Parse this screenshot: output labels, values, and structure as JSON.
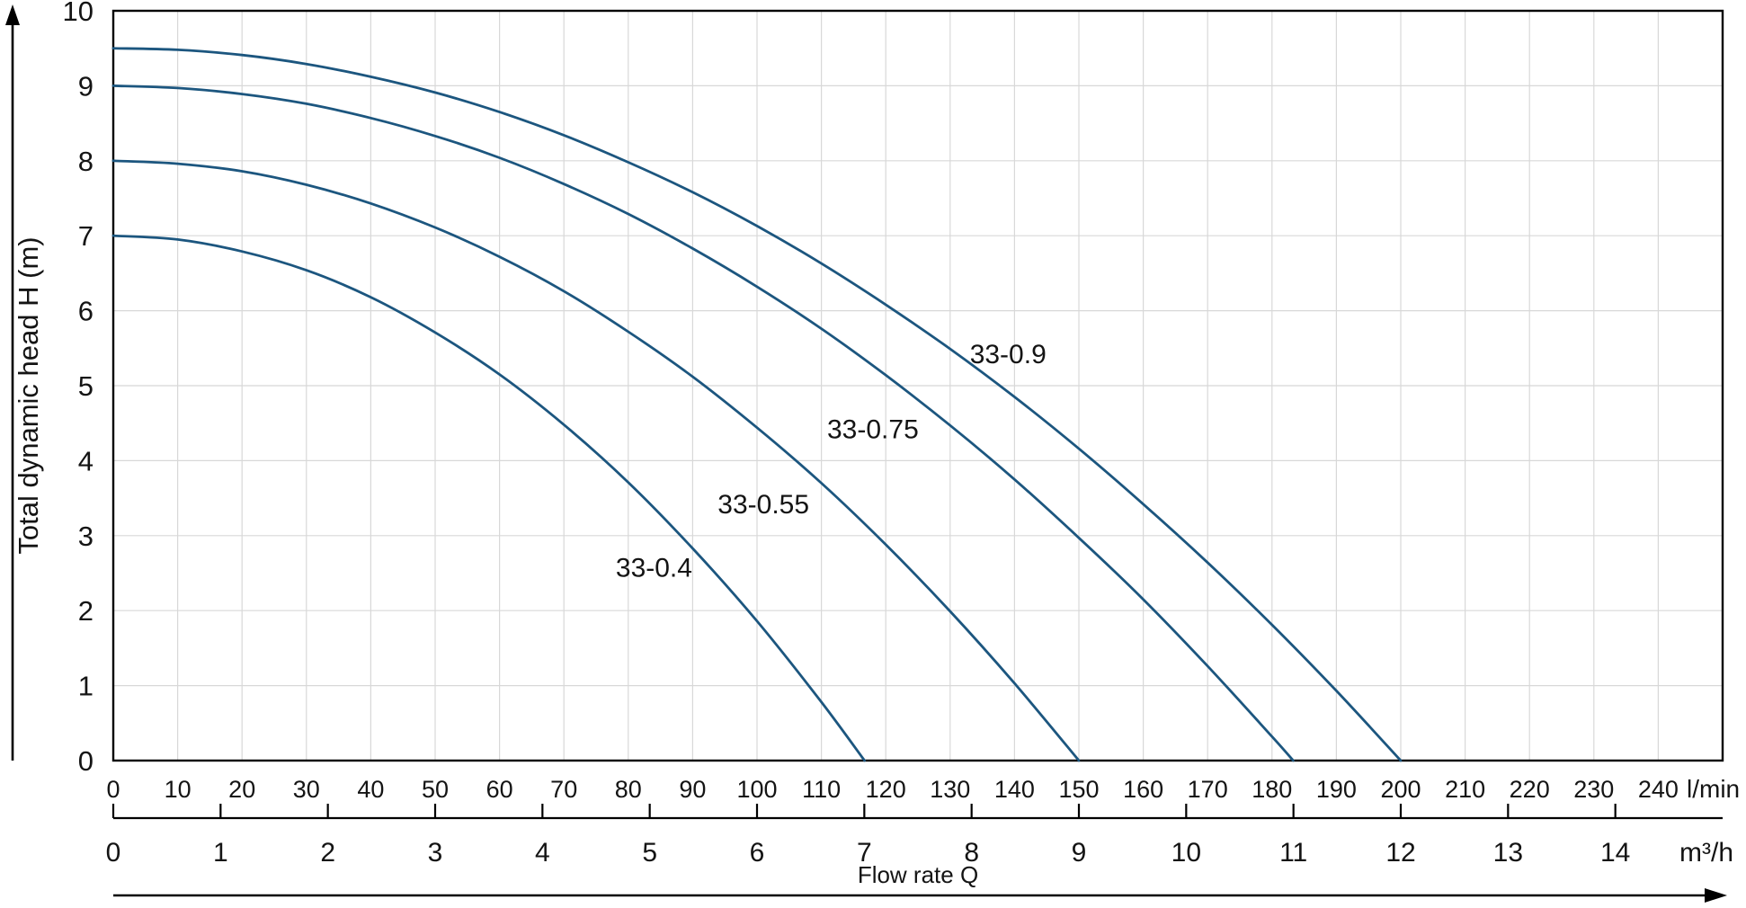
{
  "chart_data": {
    "type": "line",
    "xlabel": "Flow rate Q",
    "ylabel": "Total dynamic head H (m)",
    "grid": true,
    "legend_position": "inline-labels",
    "colors": {
      "curve": "#1c567f",
      "grid": "#d8d8d8",
      "axis": "#000000",
      "text": "#141414",
      "background": "#ffffff"
    },
    "y_axis": {
      "min": 0,
      "max": 10,
      "tick_step": 1,
      "tick_labels": [
        "0",
        "1",
        "2",
        "3",
        "4",
        "5",
        "6",
        "7",
        "8",
        "9",
        "10"
      ]
    },
    "x_axis_lmin": {
      "min": 0,
      "max": 250,
      "grid_step": 10,
      "tick_step": 10,
      "unit": "l/min",
      "tick_labels": [
        "0",
        "10",
        "20",
        "30",
        "40",
        "50",
        "60",
        "70",
        "80",
        "90",
        "100",
        "110",
        "120",
        "130",
        "140",
        "150",
        "160",
        "170",
        "180",
        "190",
        "200",
        "210",
        "220",
        "230",
        "240"
      ]
    },
    "x_axis_m3h": {
      "min": 0,
      "max": 14,
      "tick_step": 1,
      "unit": "m³/h",
      "lmin_per_unit": 16.6667,
      "tick_labels": [
        "0",
        "1",
        "2",
        "3",
        "4",
        "5",
        "6",
        "7",
        "8",
        "9",
        "10",
        "11",
        "12",
        "13",
        "14"
      ]
    },
    "series": [
      {
        "name": "33-0.4",
        "shutoff_head_m": 7.0,
        "max_flow_lmin": 116.7,
        "max_flow_m3h": 7.0,
        "label_q_lmin": 84,
        "label_h_m": 2.45,
        "points": [
          [
            0,
            7.0
          ],
          [
            10,
            6.95
          ],
          [
            20,
            6.79
          ],
          [
            30,
            6.54
          ],
          [
            40,
            6.18
          ],
          [
            50,
            5.71
          ],
          [
            60,
            5.15
          ],
          [
            70,
            4.48
          ],
          [
            80,
            3.71
          ],
          [
            90,
            2.83
          ],
          [
            100,
            1.86
          ],
          [
            110,
            0.78
          ],
          [
            116.7,
            0
          ]
        ]
      },
      {
        "name": "33-0.55",
        "shutoff_head_m": 8.0,
        "max_flow_lmin": 150,
        "max_flow_m3h": 9.0,
        "label_q_lmin": 101,
        "label_h_m": 3.3,
        "points": [
          [
            0,
            8.0
          ],
          [
            10,
            7.96
          ],
          [
            20,
            7.86
          ],
          [
            30,
            7.68
          ],
          [
            40,
            7.43
          ],
          [
            50,
            7.11
          ],
          [
            60,
            6.72
          ],
          [
            70,
            6.26
          ],
          [
            80,
            5.72
          ],
          [
            90,
            5.12
          ],
          [
            100,
            4.44
          ],
          [
            110,
            3.7
          ],
          [
            120,
            2.88
          ],
          [
            130,
            1.99
          ],
          [
            140,
            1.03
          ],
          [
            150,
            0
          ]
        ]
      },
      {
        "name": "33-0.75",
        "shutoff_head_m": 9.0,
        "max_flow_lmin": 183.3,
        "max_flow_m3h": 11.0,
        "label_q_lmin": 118,
        "label_h_m": 4.3,
        "points": [
          [
            0,
            9.0
          ],
          [
            10,
            8.97
          ],
          [
            20,
            8.89
          ],
          [
            30,
            8.76
          ],
          [
            40,
            8.57
          ],
          [
            50,
            8.33
          ],
          [
            60,
            8.04
          ],
          [
            70,
            7.69
          ],
          [
            80,
            7.29
          ],
          [
            90,
            6.83
          ],
          [
            100,
            6.32
          ],
          [
            110,
            5.76
          ],
          [
            120,
            5.14
          ],
          [
            130,
            4.47
          ],
          [
            140,
            3.75
          ],
          [
            150,
            2.97
          ],
          [
            160,
            2.15
          ],
          [
            170,
            1.26
          ],
          [
            180,
            0.32
          ],
          [
            183.3,
            0
          ]
        ]
      },
      {
        "name": "33-0.9",
        "shutoff_head_m": 9.5,
        "max_flow_lmin": 200,
        "max_flow_m3h": 12.0,
        "label_q_lmin": 139,
        "label_h_m": 5.3,
        "points": [
          [
            0,
            9.5
          ],
          [
            10,
            9.48
          ],
          [
            20,
            9.41
          ],
          [
            30,
            9.29
          ],
          [
            40,
            9.12
          ],
          [
            50,
            8.91
          ],
          [
            60,
            8.65
          ],
          [
            70,
            8.34
          ],
          [
            80,
            7.98
          ],
          [
            90,
            7.58
          ],
          [
            100,
            7.13
          ],
          [
            110,
            6.63
          ],
          [
            120,
            6.08
          ],
          [
            130,
            5.49
          ],
          [
            140,
            4.85
          ],
          [
            150,
            4.16
          ],
          [
            160,
            3.42
          ],
          [
            170,
            2.64
          ],
          [
            180,
            1.81
          ],
          [
            190,
            0.93
          ],
          [
            200,
            0
          ]
        ]
      }
    ]
  }
}
